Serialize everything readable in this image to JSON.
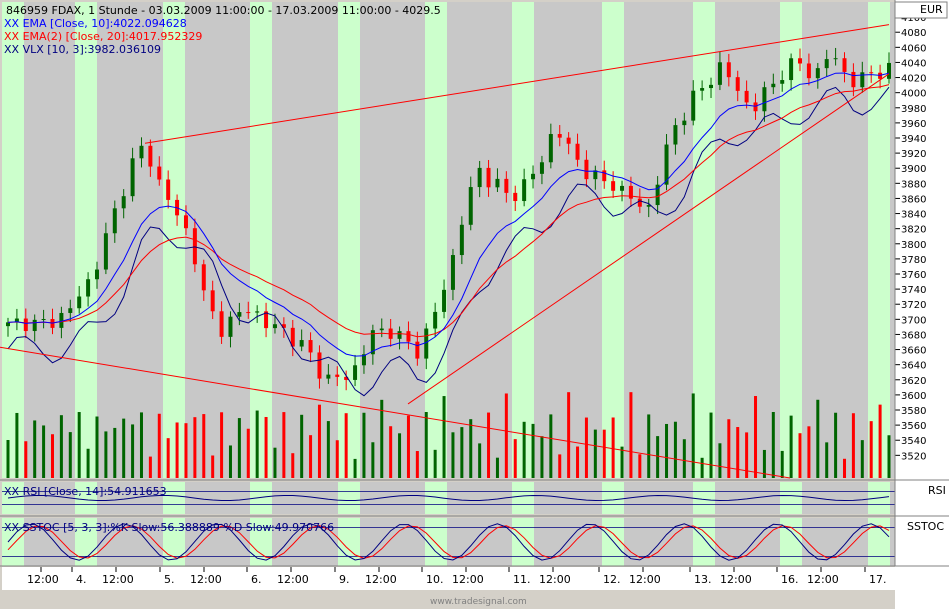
{
  "header": {
    "title": "846959  FDAX, 1 Stunde - 03.03.2009 11:00:00 - 17.03.2009 11:00:00 - 4029.5",
    "ema10": "XX EMA [Close, 10]:4022.094628",
    "ema20": "XX EMA(2) [Close, 20]:4017.952329",
    "vlx": "XX VLX [10, 3]:3982.036109"
  },
  "price_panel": {
    "currency": "EUR"
  },
  "rsi_panel": {
    "label": "XX RSI [Close, 14]:54.911653",
    "axis_label": "RSI"
  },
  "sstoc_panel": {
    "label": "XX SSTOC [5, 3, 3]:%K Slow:56.388889 %D Slow:49.970766",
    "axis_label": "SSTOC"
  },
  "watermark": "www.tradesignal.com",
  "colors": {
    "background": "#C8C8C8",
    "session_band": "#CCFFCC",
    "candle_up": "#006400",
    "candle_down": "#FF0000",
    "ema10": "#0000FF",
    "ema20": "#FF0000",
    "vlx": "#000080",
    "trendline": "#FF0000",
    "rsi_line": "#000080",
    "sstoc_k": "#000080",
    "sstoc_d": "#FF0000"
  },
  "chart_data": [
    {
      "type": "candlestick",
      "title": "846959  FDAX, 1 Stunde - 03.03.2009 11:00:00 - 17.03.2009 11:00:00 - 4029.5",
      "x_tick_labels": [
        "12:00",
        "4.",
        "12:00",
        "5.",
        "12:00",
        "6.",
        "12:00",
        "9.",
        "12:00",
        "10.",
        "12:00",
        "11.",
        "12:00",
        "12.",
        "12:00",
        "13.",
        "12:00",
        "16.",
        "12:00",
        "17."
      ],
      "y_ticks": [
        3520,
        3540,
        3560,
        3580,
        3600,
        3620,
        3640,
        3660,
        3680,
        3700,
        3720,
        3740,
        3760,
        3780,
        3800,
        3820,
        3840,
        3860,
        3880,
        3900,
        3920,
        3940,
        3960,
        3980,
        4000,
        4020,
        4040,
        4060,
        4080,
        4100
      ],
      "ylim": [
        3490,
        4120
      ],
      "close_series_anchors": [
        3690,
        3700,
        3690,
        3700,
        3710,
        3740,
        3780,
        3840,
        3900,
        3930,
        3880,
        3840,
        3810,
        3720,
        3690,
        3700,
        3720,
        3690,
        3690,
        3670,
        3650,
        3620,
        3620,
        3640,
        3680,
        3690,
        3670,
        3660,
        3700,
        3760,
        3840,
        3900,
        3880,
        3860,
        3880,
        3900,
        3960,
        3920,
        3900,
        3880,
        3880,
        3860,
        3840,
        3900,
        3960,
        3990,
        4010,
        4040,
        4000,
        3980,
        4000,
        4030,
        4040,
        4020,
        4050,
        4030,
        4010,
        4030,
        4030
      ],
      "series": [
        {
          "name": "XX EMA [Close, 10]",
          "last": 4022.094628
        },
        {
          "name": "XX EMA(2) [Close, 20]",
          "last": 4017.952329
        },
        {
          "name": "XX VLX [10, 3]",
          "last": 3982.036109
        }
      ],
      "trendlines": [
        {
          "from": [
            "4.",
            3933
          ],
          "to": [
            "17.",
            4090
          ]
        },
        {
          "from": [
            "9.",
            3588
          ],
          "to": [
            "17.",
            4025
          ]
        },
        {
          "from": [
            "3.",
            3663
          ],
          "to": [
            "16.",
            3490
          ]
        }
      ],
      "grid": true
    },
    {
      "type": "line",
      "title": "XX RSI [Close, 14]:54.911653",
      "series": [
        {
          "name": "XX RSI [Close, 14]",
          "last": 54.911653
        }
      ]
    },
    {
      "type": "line",
      "title": "XX SSTOC [5, 3, 3]:%K Slow:56.388889 %D Slow:49.970766",
      "series": [
        {
          "name": "%K Slow",
          "last": 56.388889
        },
        {
          "name": "%D Slow",
          "last": 49.970766
        }
      ]
    }
  ]
}
